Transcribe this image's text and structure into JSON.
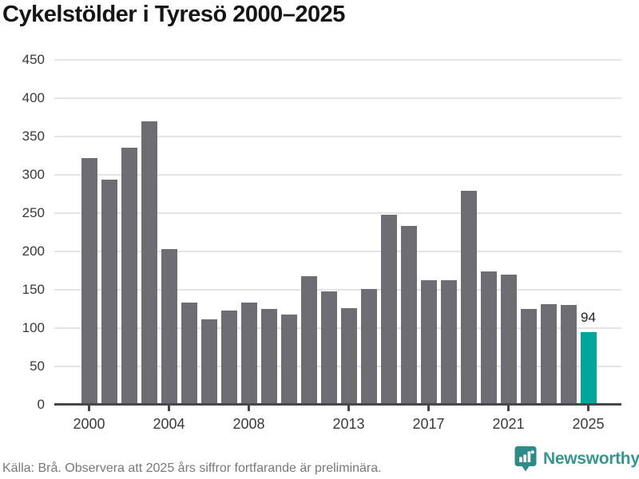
{
  "title": "Cykelstölder i Tyresö 2000–2025",
  "chart_data": {
    "type": "bar",
    "title": "Cykelstölder i Tyresö 2000–2025",
    "x": [
      2000,
      2001,
      2002,
      2003,
      2004,
      2005,
      2006,
      2007,
      2008,
      2009,
      2010,
      2011,
      2012,
      2013,
      2014,
      2015,
      2016,
      2017,
      2018,
      2019,
      2020,
      2021,
      2022,
      2023,
      2024,
      2025
    ],
    "values": [
      321,
      293,
      335,
      369,
      203,
      133,
      111,
      122,
      133,
      124,
      117,
      167,
      147,
      126,
      151,
      247,
      233,
      162,
      162,
      279,
      173,
      169,
      124,
      131,
      130,
      94
    ],
    "highlight_index": 25,
    "highlight_value_label": "94",
    "y_ticks": [
      0,
      50,
      100,
      150,
      200,
      250,
      300,
      350,
      400,
      450
    ],
    "x_tick_years": [
      2000,
      2004,
      2008,
      2013,
      2017,
      2021,
      2025
    ],
    "ylim": [
      0,
      450
    ],
    "grid": "horizontal",
    "legend": "none",
    "bar_color": "#6e6d73",
    "highlight_color": "#00a69a"
  },
  "footer": {
    "source_note": "Källa: Brå. Observera att 2025 års siffror fortfarande är preliminära.",
    "brand": "Newsworthy"
  },
  "colors": {
    "bar": "#6e6d73",
    "highlight": "#00a69a",
    "axis": "#47474b",
    "gridline": "#e4e4e4",
    "brand_teal": "#399490",
    "brand_icon": "#2e8b87"
  }
}
